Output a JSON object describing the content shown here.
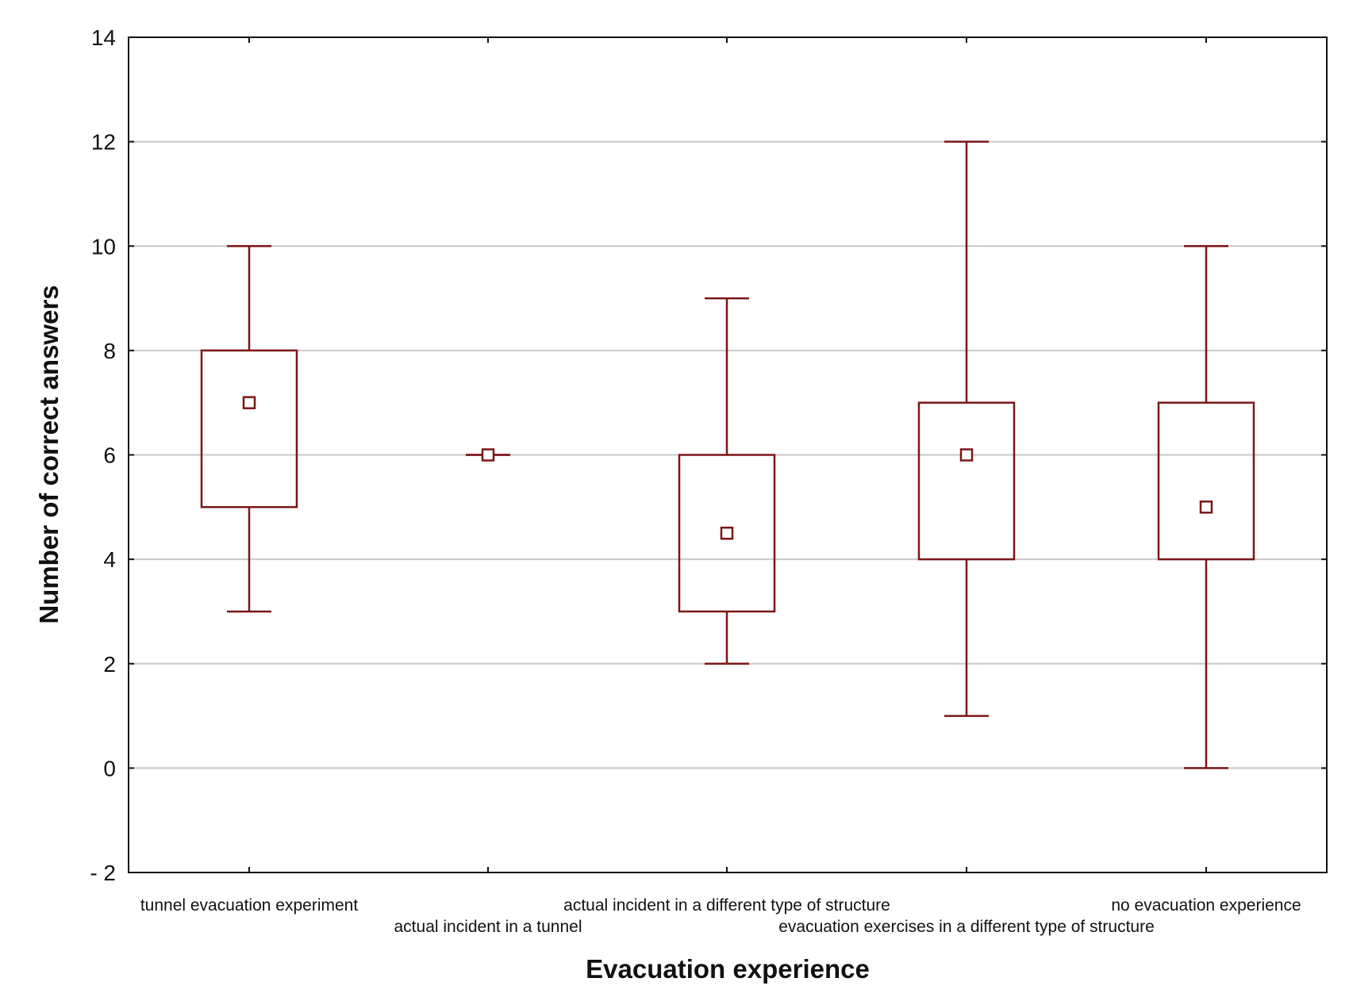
{
  "chart_data": {
    "type": "boxplot",
    "xlabel": "Evacuation experience",
    "ylabel": "Number of correct answers",
    "ylim": [
      -2,
      14
    ],
    "yticks": [
      -2,
      0,
      2,
      4,
      6,
      8,
      10,
      12,
      14
    ],
    "ytick_labels": [
      "- 2",
      "0",
      "2",
      "4",
      "6",
      "8",
      "10",
      "12",
      "14"
    ],
    "grid": true,
    "color": "#7b1616",
    "categories": [
      "tunnel evacuation experiment",
      "actual incident in a tunnel",
      "actual incident in a different type of structure",
      "evacuation exercises in a different type of structure",
      "no evacuation experience"
    ],
    "boxes": [
      {
        "min": 3,
        "q1": 5,
        "median": 7,
        "q3": 8,
        "max": 10
      },
      {
        "min": 6,
        "q1": 6,
        "median": 6,
        "q3": 6,
        "max": 6
      },
      {
        "min": 2,
        "q1": 3,
        "median": 4.5,
        "q3": 6,
        "max": 9
      },
      {
        "min": 1,
        "q1": 4,
        "median": 6,
        "q3": 7,
        "max": 12
      },
      {
        "min": 0,
        "q1": 4,
        "median": 5,
        "q3": 7,
        "max": 10
      }
    ]
  }
}
